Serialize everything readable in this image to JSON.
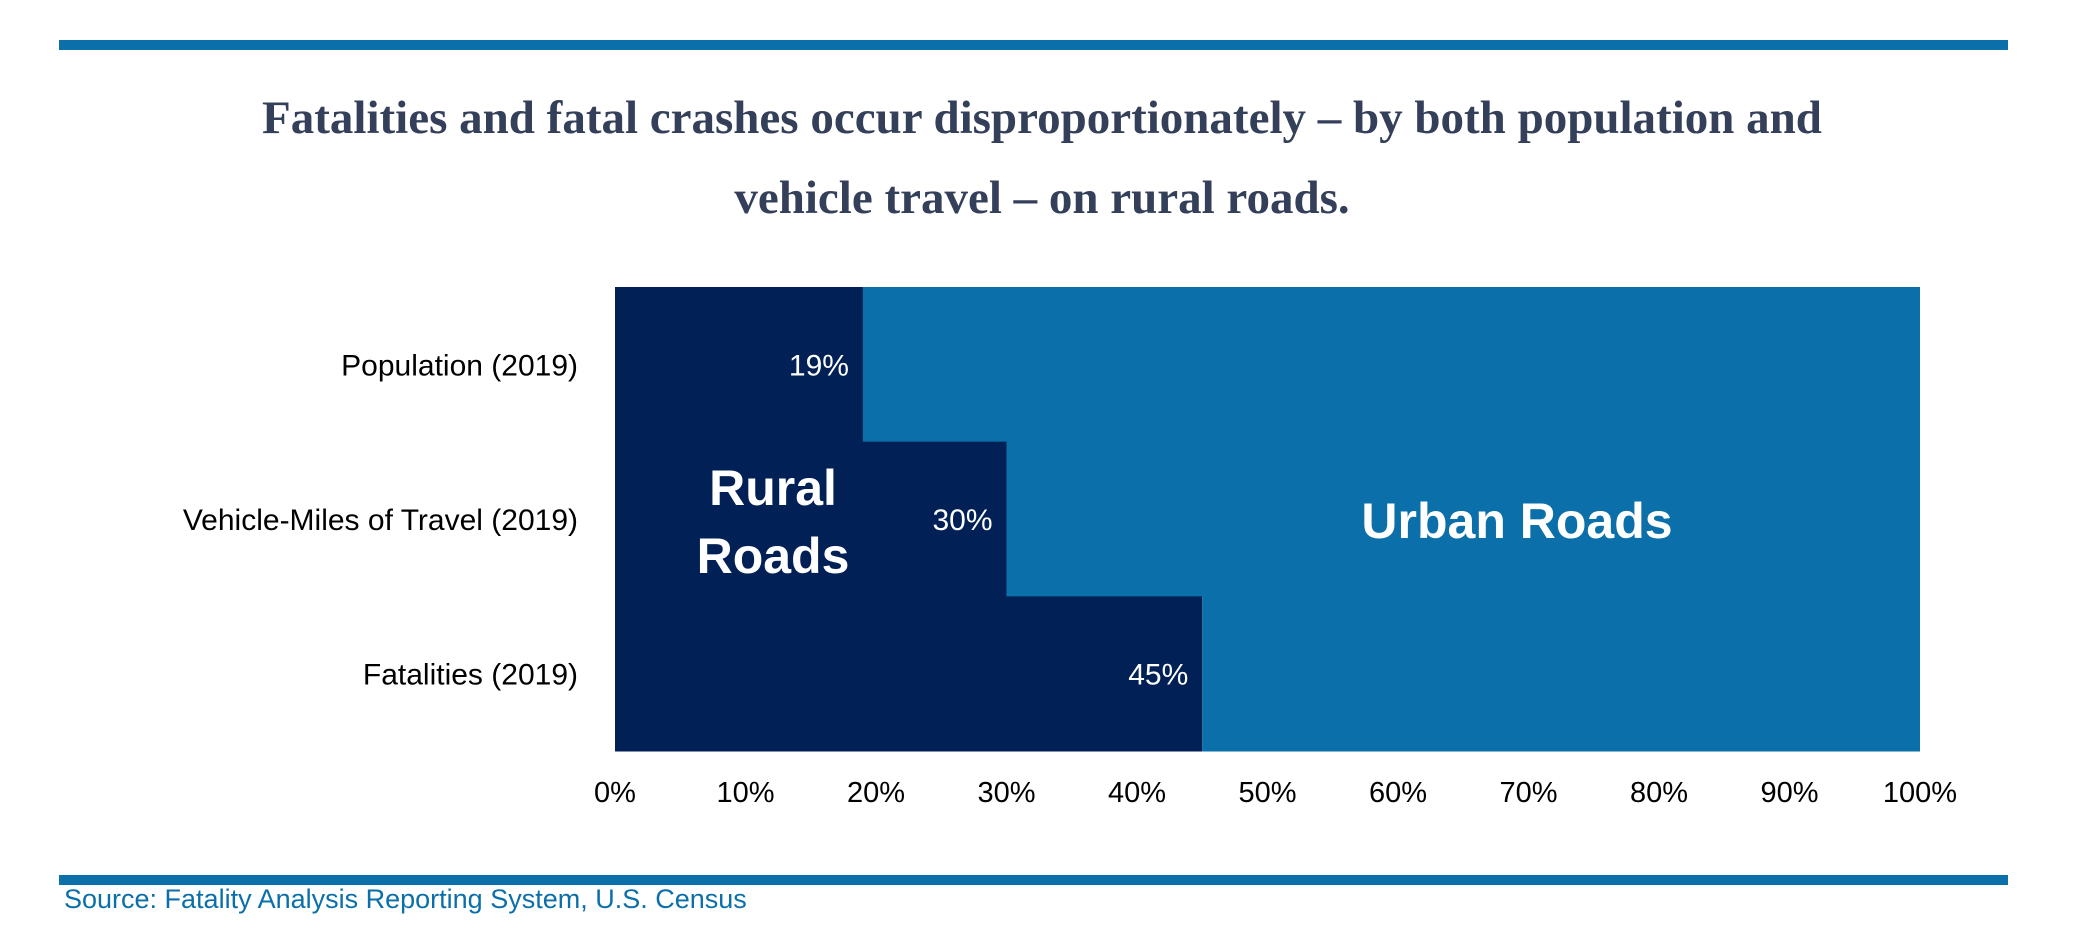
{
  "title": {
    "line1": "Fatalities and fatal crashes occur disproportionately – by both population and",
    "line2": "vehicle travel – on rural roads."
  },
  "source": "Source: Fatality Analysis Reporting System, U.S. Census",
  "colors": {
    "rural": "#002056",
    "urban": "#0b6faa",
    "rule": "#0b6faa",
    "title": "#34405a"
  },
  "chart_data": {
    "type": "bar",
    "orientation": "horizontal-stacked-100",
    "categories": [
      "Population (2019)",
      "Vehicle-Miles of Travel  (2019)",
      "Fatalities (2019)"
    ],
    "series": [
      {
        "name": "Rural Roads",
        "values": [
          19,
          30,
          45
        ],
        "labels": [
          "19%",
          "30%",
          "45%"
        ]
      },
      {
        "name": "Urban Roads",
        "values": [
          81,
          70,
          55
        ]
      }
    ],
    "series_labels": {
      "rural_line1": "Rural",
      "rural_line2": "Roads",
      "urban": "Urban Roads"
    },
    "xlim": [
      0,
      100
    ],
    "xticks": [
      "0%",
      "10%",
      "20%",
      "30%",
      "40%",
      "50%",
      "60%",
      "70%",
      "80%",
      "90%",
      "100%"
    ],
    "grid": false,
    "legend": "none"
  }
}
